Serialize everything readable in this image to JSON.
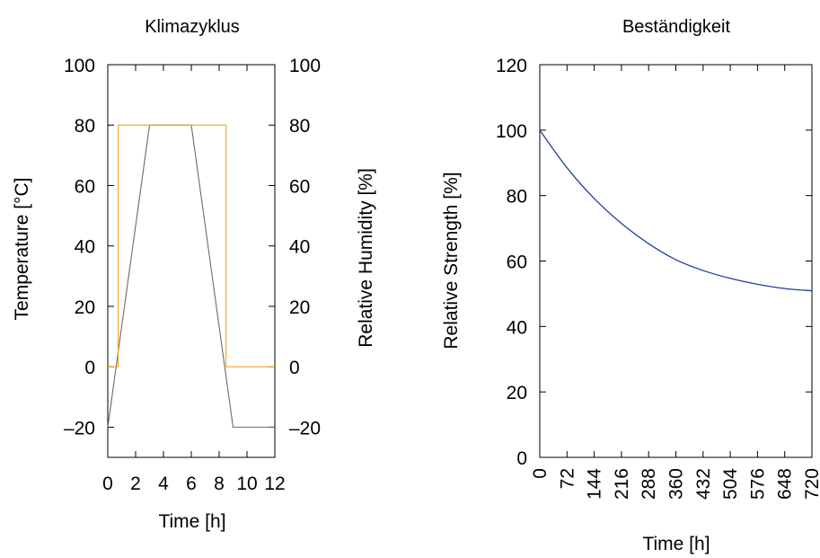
{
  "chart_data": [
    {
      "type": "line",
      "title": "Klimazyklus",
      "xlabel": "Time [h]",
      "ylabel": "Temperature [°C]",
      "y2label": "Relative Humidity [%]",
      "xlim": [
        0,
        12
      ],
      "ylim": [
        -30,
        100
      ],
      "y2lim": [
        -30,
        100
      ],
      "x_ticks": [
        0,
        2,
        4,
        6,
        8,
        10,
        12
      ],
      "x_tick_labels": [
        "0",
        "2",
        "4",
        "6",
        "8",
        "10",
        "12"
      ],
      "y_ticks": [
        -20,
        0,
        20,
        40,
        60,
        80,
        100
      ],
      "y_tick_labels": [
        "–20",
        "0",
        "20",
        "40",
        "60",
        "80",
        "100"
      ],
      "y2_ticks": [
        -20,
        0,
        20,
        40,
        60,
        80,
        100
      ],
      "y2_tick_labels": [
        "–20",
        "0",
        "20",
        "40",
        "60",
        "80",
        "100"
      ],
      "grid": false,
      "series": [
        {
          "axis": "left",
          "color": "#6b6b6b",
          "x": [
            0,
            3,
            6,
            9,
            12
          ],
          "y": [
            -20,
            80,
            80,
            -20,
            -20
          ]
        },
        {
          "axis": "right",
          "color": "#f5a020",
          "x": [
            0,
            0.75,
            0.75,
            8.5,
            8.5,
            12
          ],
          "y": [
            0,
            0,
            80,
            80,
            0,
            0
          ]
        }
      ]
    },
    {
      "type": "line",
      "title": "Beständigkeit",
      "xlabel": "Time [h]",
      "ylabel": "Relative Strength [%]",
      "xlim": [
        0,
        720
      ],
      "ylim": [
        0,
        120
      ],
      "x_ticks": [
        0,
        72,
        144,
        216,
        288,
        360,
        432,
        504,
        576,
        648,
        720
      ],
      "x_tick_labels": [
        "0",
        "72",
        "144",
        "216",
        "288",
        "360",
        "432",
        "504",
        "576",
        "648",
        "720"
      ],
      "y_ticks": [
        0,
        20,
        40,
        60,
        80,
        100,
        120
      ],
      "y_tick_labels": [
        "0",
        "20",
        "40",
        "60",
        "80",
        "100",
        "120"
      ],
      "grid": false,
      "series": [
        {
          "axis": "left",
          "color": "#1f3f9f",
          "x": [
            0,
            72,
            144,
            216,
            288,
            360,
            432,
            504,
            576,
            648,
            720
          ],
          "y": [
            100,
            88.5,
            79.1,
            71.5,
            65.3,
            60.4,
            57.1,
            54.7,
            52.9,
            51.6,
            50.9
          ]
        }
      ]
    }
  ]
}
